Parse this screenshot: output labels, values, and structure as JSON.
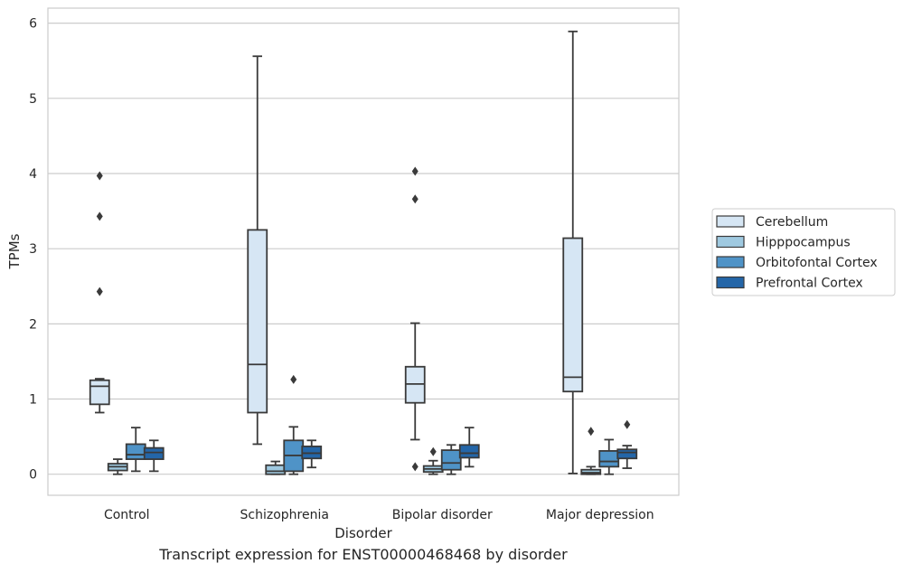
{
  "chart_data": {
    "type": "box",
    "caption": "Transcript expression for ENST00000468468 by disorder",
    "xlabel": "Disorder",
    "ylabel": "TPMs",
    "ylim": [
      -0.28,
      6.2
    ],
    "yticks": [
      0,
      1,
      2,
      3,
      4,
      5,
      6
    ],
    "grid": "horizontal",
    "legend_position": "right",
    "categories": [
      "Control",
      "Schizophrenia",
      "Bipolar disorder",
      "Major depression"
    ],
    "series": [
      {
        "name": "Cerebellum",
        "color": "#d6e6f4",
        "boxes": [
          {
            "whislo": 0.82,
            "q1": 0.93,
            "med": 1.17,
            "q3": 1.25,
            "whishi": 1.27,
            "fliers": [
              2.43,
              3.43,
              3.97
            ]
          },
          {
            "whislo": 0.4,
            "q1": 0.82,
            "med": 1.46,
            "q3": 3.25,
            "whishi": 5.56,
            "fliers": []
          },
          {
            "whislo": 0.46,
            "q1": 0.95,
            "med": 1.2,
            "q3": 1.43,
            "whishi": 2.01,
            "fliers": [
              0.1,
              3.66,
              4.03
            ]
          },
          {
            "whislo": 0.01,
            "q1": 1.1,
            "med": 1.29,
            "q3": 3.14,
            "whishi": 5.89,
            "fliers": []
          }
        ]
      },
      {
        "name": "Hipppocampus",
        "color": "#9fc9e0",
        "boxes": [
          {
            "whislo": 0.0,
            "q1": 0.05,
            "med": 0.1,
            "q3": 0.14,
            "whishi": 0.2,
            "fliers": []
          },
          {
            "whislo": 0.0,
            "q1": 0.0,
            "med": 0.04,
            "q3": 0.12,
            "whishi": 0.17,
            "fliers": []
          },
          {
            "whislo": 0.0,
            "q1": 0.03,
            "med": 0.07,
            "q3": 0.11,
            "whishi": 0.18,
            "fliers": [
              0.3
            ]
          },
          {
            "whislo": 0.0,
            "q1": 0.0,
            "med": 0.02,
            "q3": 0.06,
            "whishi": 0.1,
            "fliers": [
              0.57
            ]
          }
        ]
      },
      {
        "name": "Orbitofontal Cortex",
        "color": "#4f93c7",
        "boxes": [
          {
            "whislo": 0.04,
            "q1": 0.2,
            "med": 0.26,
            "q3": 0.4,
            "whishi": 0.62,
            "fliers": []
          },
          {
            "whislo": 0.0,
            "q1": 0.04,
            "med": 0.25,
            "q3": 0.45,
            "whishi": 0.63,
            "fliers": [
              1.26
            ]
          },
          {
            "whislo": 0.0,
            "q1": 0.06,
            "med": 0.15,
            "q3": 0.32,
            "whishi": 0.39,
            "fliers": []
          },
          {
            "whislo": 0.0,
            "q1": 0.1,
            "med": 0.17,
            "q3": 0.31,
            "whishi": 0.46,
            "fliers": []
          }
        ]
      },
      {
        "name": "Prefrontal Cortex",
        "color": "#2466a8",
        "boxes": [
          {
            "whislo": 0.04,
            "q1": 0.2,
            "med": 0.29,
            "q3": 0.35,
            "whishi": 0.45,
            "fliers": []
          },
          {
            "whislo": 0.09,
            "q1": 0.21,
            "med": 0.28,
            "q3": 0.37,
            "whishi": 0.45,
            "fliers": []
          },
          {
            "whislo": 0.1,
            "q1": 0.22,
            "med": 0.28,
            "q3": 0.39,
            "whishi": 0.62,
            "fliers": []
          },
          {
            "whislo": 0.08,
            "q1": 0.21,
            "med": 0.29,
            "q3": 0.33,
            "whishi": 0.38,
            "fliers": [
              0.66
            ]
          }
        ]
      }
    ]
  }
}
